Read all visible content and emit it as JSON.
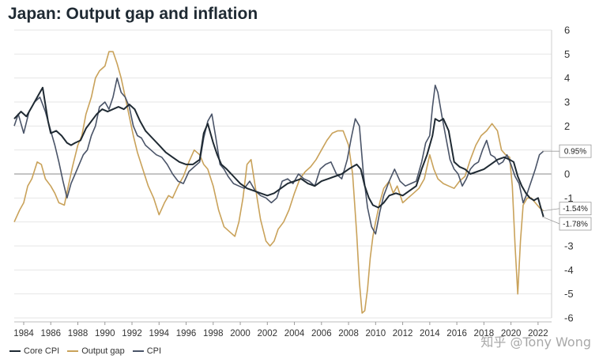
{
  "chart_data": {
    "type": "line",
    "title": "Japan: Output gap and inflation",
    "xlabel": "",
    "ylabel": "",
    "xlim": [
      1983.3,
      2023.0
    ],
    "ylim": [
      -6,
      6
    ],
    "y_ticks": [
      "6",
      "5",
      "4",
      "3",
      "2",
      "1",
      "0",
      "-1",
      "-2",
      "-3",
      "-4",
      "-5",
      "-6"
    ],
    "y_tick_values": [
      6,
      5,
      4,
      3,
      2,
      1,
      0,
      -1,
      -2,
      -3,
      -4,
      -5,
      -6
    ],
    "x_ticks": [
      "1984",
      "1986",
      "1988",
      "1990",
      "1992",
      "1994",
      "1996",
      "1998",
      "2000",
      "2002",
      "2004",
      "2006",
      "2008",
      "2010",
      "2012",
      "2014",
      "2016",
      "2018",
      "2020",
      "2022"
    ],
    "x_tick_values": [
      1984,
      1986,
      1988,
      1990,
      1992,
      1994,
      1996,
      1998,
      2000,
      2002,
      2004,
      2006,
      2008,
      2010,
      2012,
      2014,
      2016,
      2018,
      2020,
      2022
    ],
    "grid": true,
    "legend_position": "bottom-left",
    "series": [
      {
        "name": "Core CPI",
        "color": "#1f2a33",
        "x": [
          1983.3,
          1983.8,
          1984.2,
          1984.6,
          1985.0,
          1985.4,
          1985.8,
          1986.0,
          1986.4,
          1986.8,
          1987.2,
          1987.5,
          1987.8,
          1988.2,
          1988.6,
          1989.0,
          1989.4,
          1989.8,
          1990.2,
          1990.6,
          1991.0,
          1991.4,
          1991.8,
          1992.2,
          1992.6,
          1993.0,
          1993.5,
          1994.0,
          1994.5,
          1995.0,
          1995.5,
          1996.0,
          1996.5,
          1997.0,
          1997.3,
          1997.6,
          1998.0,
          1998.3,
          1998.6,
          1999.0,
          1999.5,
          2000.0,
          2000.5,
          2001.0,
          2001.5,
          2002.0,
          2002.5,
          2003.0,
          2003.5,
          2004.0,
          2004.5,
          2005.0,
          2005.5,
          2006.0,
          2006.5,
          2007.0,
          2007.5,
          2008.0,
          2008.3,
          2008.6,
          2008.9,
          2009.2,
          2009.5,
          2009.8,
          2010.2,
          2010.6,
          2011.0,
          2011.5,
          2012.0,
          2012.5,
          2013.0,
          2013.4,
          2013.8,
          2014.2,
          2014.4,
          2014.7,
          2015.0,
          2015.4,
          2015.8,
          2016.2,
          2016.6,
          2017.0,
          2017.5,
          2018.0,
          2018.5,
          2019.0,
          2019.5,
          2019.9,
          2020.2,
          2020.5,
          2020.8,
          2021.1,
          2021.4,
          2021.7,
          2022.0,
          2022.2,
          2022.4
        ],
        "values": [
          2.3,
          2.6,
          2.4,
          2.8,
          3.2,
          3.6,
          2.2,
          1.7,
          1.8,
          1.6,
          1.3,
          1.2,
          1.3,
          1.4,
          1.9,
          2.2,
          2.5,
          2.7,
          2.6,
          2.7,
          2.8,
          2.7,
          2.9,
          2.7,
          2.2,
          1.8,
          1.5,
          1.2,
          0.9,
          0.7,
          0.5,
          0.4,
          0.4,
          0.6,
          1.7,
          2.1,
          1.3,
          0.8,
          0.4,
          0.2,
          -0.1,
          -0.4,
          -0.6,
          -0.7,
          -0.8,
          -0.9,
          -0.8,
          -0.6,
          -0.4,
          -0.3,
          -0.2,
          -0.4,
          -0.5,
          -0.3,
          -0.2,
          -0.1,
          0.0,
          0.2,
          0.3,
          0.4,
          0.2,
          -0.5,
          -1.0,
          -1.3,
          -1.4,
          -1.2,
          -0.9,
          -0.8,
          -0.9,
          -0.7,
          -0.5,
          0.2,
          0.8,
          1.6,
          2.3,
          2.2,
          2.3,
          1.8,
          0.5,
          0.3,
          0.2,
          0.0,
          0.1,
          0.2,
          0.4,
          0.6,
          0.7,
          0.6,
          0.5,
          -0.1,
          -0.5,
          -0.8,
          -1.0,
          -1.1,
          -1.0,
          -1.4,
          -1.78
        ]
      },
      {
        "name": "Output gap",
        "color": "#c9a25a",
        "x": [
          1983.3,
          1983.7,
          1984.0,
          1984.3,
          1984.6,
          1985.0,
          1985.3,
          1985.6,
          1986.0,
          1986.3,
          1986.6,
          1987.0,
          1987.3,
          1987.6,
          1988.0,
          1988.3,
          1988.6,
          1989.0,
          1989.3,
          1989.6,
          1990.0,
          1990.3,
          1990.6,
          1990.9,
          1991.2,
          1991.5,
          1991.8,
          1992.1,
          1992.4,
          1992.8,
          1993.2,
          1993.6,
          1994.0,
          1994.4,
          1994.7,
          1995.0,
          1995.4,
          1995.8,
          1996.2,
          1996.6,
          1997.0,
          1997.3,
          1997.6,
          1998.0,
          1998.4,
          1998.8,
          1999.2,
          1999.6,
          1999.9,
          2000.2,
          2000.5,
          2000.8,
          2001.1,
          2001.5,
          2001.9,
          2002.2,
          2002.5,
          2002.8,
          2003.2,
          2003.6,
          2004.0,
          2004.4,
          2004.8,
          2005.2,
          2005.6,
          2006.0,
          2006.4,
          2006.8,
          2007.2,
          2007.6,
          2008.0,
          2008.3,
          2008.6,
          2008.8,
          2009.0,
          2009.2,
          2009.4,
          2009.6,
          2009.8,
          2010.0,
          2010.3,
          2010.6,
          2011.0,
          2011.3,
          2011.6,
          2012.0,
          2012.4,
          2012.8,
          2013.2,
          2013.6,
          2014.0,
          2014.3,
          2014.6,
          2015.0,
          2015.4,
          2015.8,
          2016.2,
          2016.6,
          2017.0,
          2017.4,
          2017.8,
          2018.2,
          2018.6,
          2019.0,
          2019.3,
          2019.6,
          2019.9,
          2020.1,
          2020.3,
          2020.5,
          2020.7,
          2020.9,
          2021.2,
          2021.5,
          2021.8,
          2022.1,
          2022.4
        ],
        "values": [
          -2.0,
          -1.5,
          -1.2,
          -0.5,
          -0.2,
          0.5,
          0.4,
          -0.2,
          -0.5,
          -0.8,
          -1.2,
          -1.3,
          -0.5,
          0.3,
          1.2,
          1.6,
          2.5,
          3.2,
          4.0,
          4.3,
          4.5,
          5.1,
          5.1,
          4.6,
          4.0,
          3.2,
          2.4,
          1.6,
          0.9,
          0.2,
          -0.5,
          -1.0,
          -1.7,
          -1.2,
          -0.9,
          -1.0,
          -0.5,
          -0.1,
          0.5,
          1.0,
          0.8,
          0.4,
          0.2,
          -0.5,
          -1.5,
          -2.2,
          -2.4,
          -2.6,
          -2.0,
          -1.0,
          0.4,
          0.6,
          -0.5,
          -1.9,
          -2.8,
          -3.0,
          -2.8,
          -2.3,
          -2.0,
          -1.5,
          -0.8,
          -0.2,
          0.1,
          0.3,
          0.6,
          1.0,
          1.4,
          1.7,
          1.8,
          1.8,
          1.2,
          0.0,
          -2.5,
          -4.5,
          -5.8,
          -5.7,
          -4.8,
          -3.5,
          -2.6,
          -2.0,
          -1.2,
          -0.6,
          -0.3,
          -0.8,
          -0.5,
          -1.2,
          -1.0,
          -0.8,
          -0.6,
          -0.2,
          0.8,
          0.2,
          -0.2,
          -0.4,
          -0.5,
          -0.6,
          -0.3,
          -0.1,
          0.6,
          1.2,
          1.6,
          1.8,
          2.1,
          1.8,
          1.0,
          0.8,
          0.7,
          -0.5,
          -3.0,
          -5.0,
          -2.8,
          -1.3,
          -1.0,
          -1.0,
          -1.2,
          -1.4,
          -1.54
        ]
      },
      {
        "name": "CPI",
        "color": "#4a5468",
        "x": [
          1983.3,
          1983.6,
          1984.0,
          1984.4,
          1984.8,
          1985.2,
          1985.6,
          1986.0,
          1986.3,
          1986.6,
          1986.9,
          1987.2,
          1987.5,
          1987.8,
          1988.1,
          1988.4,
          1988.7,
          1989.0,
          1989.3,
          1989.6,
          1990.0,
          1990.3,
          1990.6,
          1990.9,
          1991.2,
          1991.5,
          1991.8,
          1992.1,
          1992.4,
          1992.7,
          1993.0,
          1993.4,
          1993.8,
          1994.2,
          1994.6,
          1995.0,
          1995.4,
          1995.8,
          1996.2,
          1996.6,
          1997.0,
          1997.3,
          1997.6,
          1997.9,
          1998.2,
          1998.5,
          1998.8,
          1999.1,
          1999.5,
          1999.9,
          2000.3,
          2000.7,
          2001.1,
          2001.5,
          2001.9,
          2002.3,
          2002.7,
          2003.1,
          2003.5,
          2003.9,
          2004.3,
          2004.7,
          2005.1,
          2005.5,
          2005.9,
          2006.3,
          2006.7,
          2007.1,
          2007.5,
          2007.9,
          2008.2,
          2008.5,
          2008.8,
          2009.1,
          2009.4,
          2009.7,
          2010.0,
          2010.3,
          2010.6,
          2011.0,
          2011.4,
          2011.8,
          2012.2,
          2012.6,
          2013.0,
          2013.4,
          2013.7,
          2014.0,
          2014.2,
          2014.4,
          2014.6,
          2014.9,
          2015.2,
          2015.5,
          2015.8,
          2016.1,
          2016.4,
          2016.7,
          2017.0,
          2017.3,
          2017.6,
          2017.9,
          2018.2,
          2018.5,
          2018.8,
          2019.1,
          2019.4,
          2019.7,
          2020.0,
          2020.3,
          2020.6,
          2020.9,
          2021.2,
          2021.5,
          2021.8,
          2022.1,
          2022.4
        ],
        "values": [
          2.0,
          2.5,
          1.7,
          2.6,
          3.0,
          3.2,
          2.6,
          1.8,
          1.2,
          0.5,
          -0.3,
          -1.0,
          -0.4,
          0.0,
          0.4,
          0.8,
          1.0,
          1.6,
          2.0,
          2.8,
          3.0,
          2.7,
          3.2,
          4.0,
          3.4,
          3.2,
          2.8,
          2.0,
          1.6,
          1.5,
          1.2,
          1.0,
          0.8,
          0.7,
          0.4,
          0.0,
          -0.3,
          -0.4,
          0.1,
          0.3,
          0.5,
          1.5,
          2.2,
          2.5,
          1.5,
          0.4,
          0.2,
          -0.1,
          -0.4,
          -0.5,
          -0.6,
          -0.3,
          -0.7,
          -0.9,
          -1.0,
          -1.2,
          -1.0,
          -0.3,
          -0.2,
          -0.4,
          0.0,
          -0.2,
          -0.3,
          -0.5,
          0.2,
          0.4,
          0.5,
          0.0,
          -0.2,
          0.6,
          1.5,
          2.3,
          2.0,
          0.0,
          -1.4,
          -2.2,
          -2.5,
          -1.6,
          -0.9,
          -0.3,
          0.2,
          -0.3,
          -0.5,
          -0.4,
          -0.3,
          0.5,
          1.3,
          1.6,
          2.8,
          3.7,
          3.4,
          2.4,
          1.5,
          0.6,
          0.2,
          0.0,
          -0.5,
          -0.2,
          0.2,
          0.4,
          0.5,
          1.0,
          1.4,
          0.8,
          0.7,
          0.4,
          0.5,
          0.8,
          0.4,
          -0.1,
          -0.4,
          -1.2,
          -0.8,
          -0.3,
          0.2,
          0.8,
          0.95
        ]
      }
    ],
    "callouts": [
      {
        "label": "0.95%",
        "value": 0.95
      },
      {
        "label": "-1.54%",
        "value": -1.54,
        "color": "#c9a25a"
      },
      {
        "label": "-1.78%",
        "value": -1.78
      }
    ]
  },
  "legend": [
    {
      "label": "Core CPI",
      "color": "#1f2a33"
    },
    {
      "label": "Output gap",
      "color": "#c9a25a"
    },
    {
      "label": "CPI",
      "color": "#4a5468"
    }
  ],
  "watermark": "知乎 @Tony Wong"
}
